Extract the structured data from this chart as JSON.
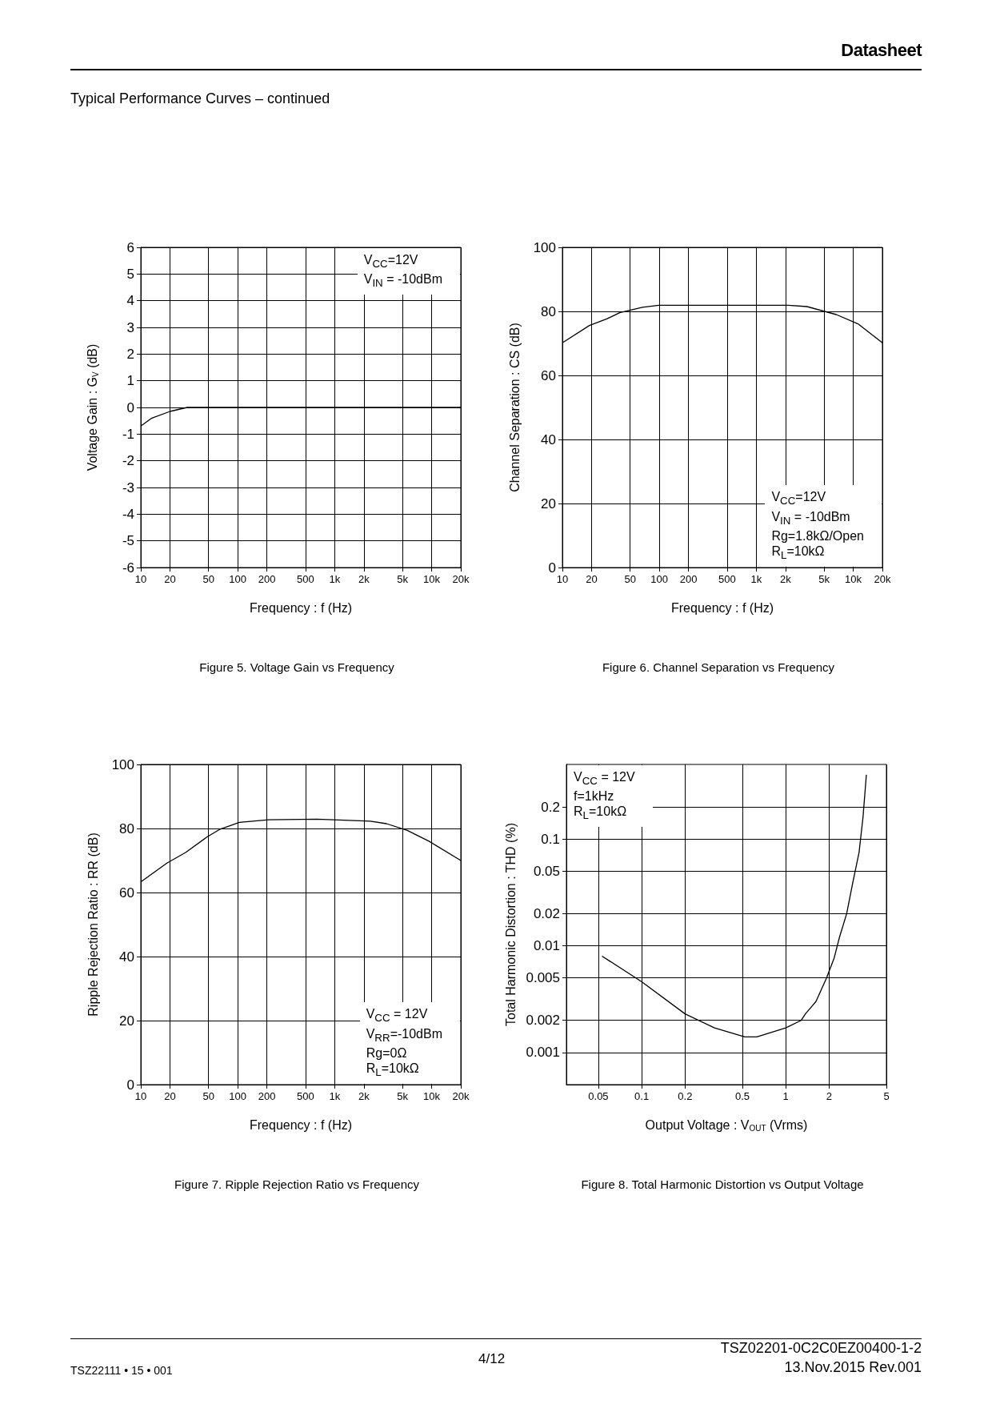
{
  "chart_data": [
    {
      "type": "line",
      "title": "Figure 5. Voltage Gain vs Frequency",
      "xlabel": "Frequency : f (Hz)",
      "ylabel": "Voltage Gain : G$_{V}$ (dB)",
      "log": "x",
      "grid": true,
      "annotations": [
        "V$_{CC}$=12V\nV$_{IN}$ = -10dBm",
        "Datasheet",
        "Typical Performance Curves – continued"
      ],
      "x": [
        10,
        13,
        20,
        30,
        100,
        1000,
        10000,
        20000
      ],
      "series": [
        {
          "color": "#000000",
          "values": [
            -0.7,
            -0.4,
            -0.15,
            0,
            0,
            0,
            0,
            0
          ]
        }
      ],
      "xlim": [
        10,
        20000
      ],
      "xticks": [
        10,
        20,
        50,
        100,
        200,
        500,
        {
          "value": 1000,
          "label": "1k"
        },
        {
          "value": 2000,
          "label": "2k"
        },
        {
          "value": 5000,
          "label": "5k"
        },
        {
          "value": 10000,
          "label": "10k"
        },
        {
          "value": 20000,
          "label": "20k"
        }
      ],
      "ylim": [
        -6,
        6
      ],
      "yticks": [
        -6,
        -5,
        -4,
        -3,
        -2,
        -1,
        0,
        1,
        2,
        3,
        4,
        5,
        6
      ]
    },
    {
      "type": "line",
      "title": "Figure 6. Channel Separation vs Frequency",
      "xlabel": "Frequency : f (Hz)",
      "ylabel": "Channel Separation : CS (dB)",
      "log": "x",
      "grid": true,
      "annotations": [
        "V$_{CC}$=12V\nV$_{IN}$ = -10dBm\nRg=1.8kΩ/Open\nR$_{L}$=10kΩ"
      ],
      "x": [
        10,
        19,
        29,
        39,
        67,
        99,
        2140,
        3330,
        6700,
        11200,
        20000
      ],
      "series": [
        {
          "color": "#000000",
          "values": [
            70.2,
            75.6,
            77.7,
            79.6,
            81.3,
            81.9,
            81.9,
            81.5,
            79,
            76.1,
            70.2
          ]
        }
      ],
      "xlim": [
        10,
        20000
      ],
      "xticks": [
        10,
        20,
        50,
        100,
        200,
        500,
        {
          "value": 1000,
          "label": "1k"
        },
        {
          "value": 2000,
          "label": "2k"
        },
        {
          "value": 5000,
          "label": "5k"
        },
        {
          "value": 10000,
          "label": "10k"
        },
        {
          "value": 20000,
          "label": "20k"
        }
      ],
      "ylim": [
        0,
        100
      ],
      "yticks": [
        0,
        20,
        40,
        60,
        80,
        100
      ]
    },
    {
      "type": "line",
      "title": "Figure 7. Ripple Rejection Ratio vs Frequency",
      "xlabel": "Frequency : f (Hz)",
      "ylabel": "Ripple Rejection Ratio : RR (dB)",
      "log": "x",
      "grid": true,
      "annotations": [
        "V$_{CC}$ = 12V\nV$_{RR}$=-10dBm\nRg=0Ω\nR$_{L}$=10kΩ"
      ],
      "x": [
        10,
        18.6,
        29,
        48,
        66,
        104,
        208,
        656,
        2330,
        3420,
        5600,
        9300,
        20000
      ],
      "series": [
        {
          "color": "#000000",
          "values": [
            63.3,
            69.2,
            72.5,
            77.3,
            79.8,
            81.9,
            82.7,
            82.9,
            82.3,
            81.5,
            79.4,
            76.1,
            70
          ]
        }
      ],
      "xlim": [
        10,
        20000
      ],
      "xticks": [
        10,
        20,
        50,
        100,
        200,
        500,
        {
          "value": 1000,
          "label": "1k"
        },
        {
          "value": 2000,
          "label": "2k"
        },
        {
          "value": 5000,
          "label": "5k"
        },
        {
          "value": 10000,
          "label": "10k"
        },
        {
          "value": 20000,
          "label": "20k"
        }
      ],
      "ylim": [
        0,
        100
      ],
      "yticks": [
        0,
        20,
        40,
        60,
        80,
        100
      ]
    },
    {
      "type": "line",
      "title": "Figure 8. Total Harmonic Distortion vs Output Voltage",
      "xlabel": "Output Voltage : V$_{OUT}$ (Vrms)",
      "ylabel": "Total Harmonic Distortion : THD (%)",
      "log": "xy",
      "grid": true,
      "annotations": [
        "V$_{CC}$ = 12V\nf=1kHz\nR$_{L}$=10kΩ",
        "TSZ22111 • 15 • 001",
        "4/12",
        "TSZ02201-0C2C0EZ00400-1-2",
        "13.Nov.2015 Rev.001"
      ],
      "x": [
        0.053,
        0.1,
        0.2,
        0.32,
        0.52,
        0.63,
        1,
        1.28,
        1.37,
        1.62,
        1.91,
        2.17,
        2.36,
        2.65,
        2.91,
        3.23,
        3.44,
        3.63
      ],
      "series": [
        {
          "color": "#000000",
          "values": [
            0.008,
            0.0046,
            0.0023,
            0.0017,
            0.0014,
            0.0014,
            0.0017,
            0.002,
            0.0023,
            0.003,
            0.0049,
            0.0077,
            0.012,
            0.02,
            0.038,
            0.075,
            0.16,
            0.4
          ]
        }
      ],
      "xlim": [
        0.03,
        5
      ],
      "xticks": [
        0.05,
        0.1,
        0.2,
        0.5,
        1,
        2,
        5
      ],
      "ylim": [
        0.0005,
        0.5
      ],
      "yticks": [
        0.001,
        0.002,
        0.005,
        0.01,
        0.02,
        0.05,
        0.1,
        0.2
      ]
    }
  ]
}
